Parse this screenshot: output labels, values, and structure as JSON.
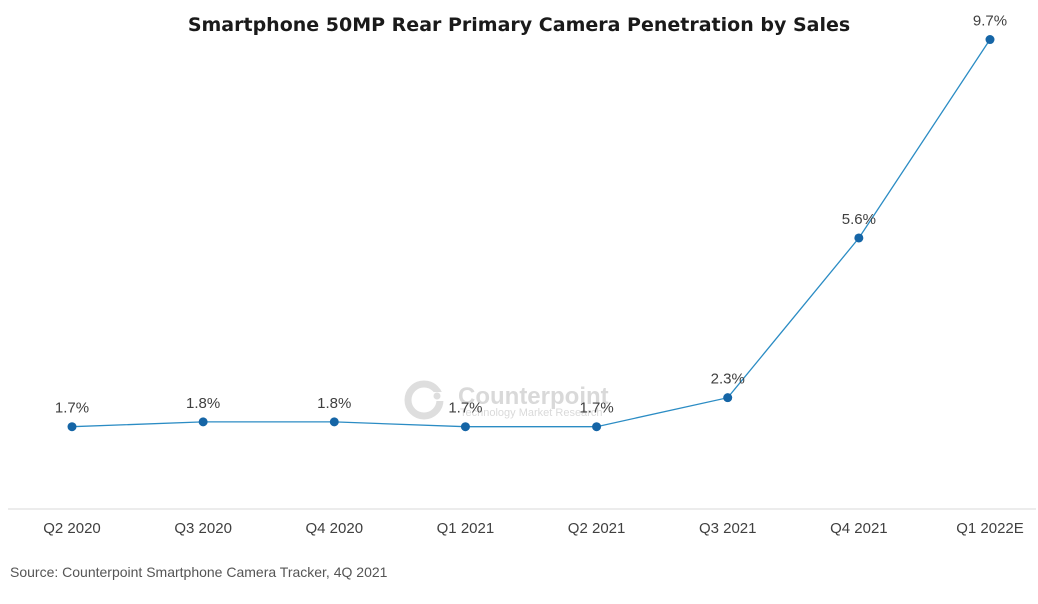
{
  "chart_data": {
    "type": "line",
    "title": "Smartphone 50MP Rear Primary Camera Penetration by Sales",
    "xlabel": "",
    "ylabel": "",
    "categories": [
      "Q2 2020",
      "Q3 2020",
      "Q4 2020",
      "Q1 2021",
      "Q2 2021",
      "Q3 2021",
      "Q4 2021",
      "Q1 2022E"
    ],
    "series": [
      {
        "name": "50MP Rear Primary Camera Penetration",
        "values": [
          1.7,
          1.8,
          1.8,
          1.7,
          1.7,
          2.3,
          5.6,
          9.7
        ],
        "labels": [
          "1.7%",
          "1.8%",
          "1.8%",
          "1.7%",
          "1.7%",
          "2.3%",
          "5.6%",
          "9.7%"
        ]
      }
    ],
    "ylim": [
      0,
      10
    ],
    "grid": false,
    "legend": "none",
    "line_color": "#2b8cc4",
    "marker_color": "#1565a6",
    "source": "Source: Counterpoint Smartphone Camera Tracker, 4Q 2021",
    "watermark": {
      "brand": "Counterpoint",
      "tagline": "Technology Market Research"
    }
  }
}
